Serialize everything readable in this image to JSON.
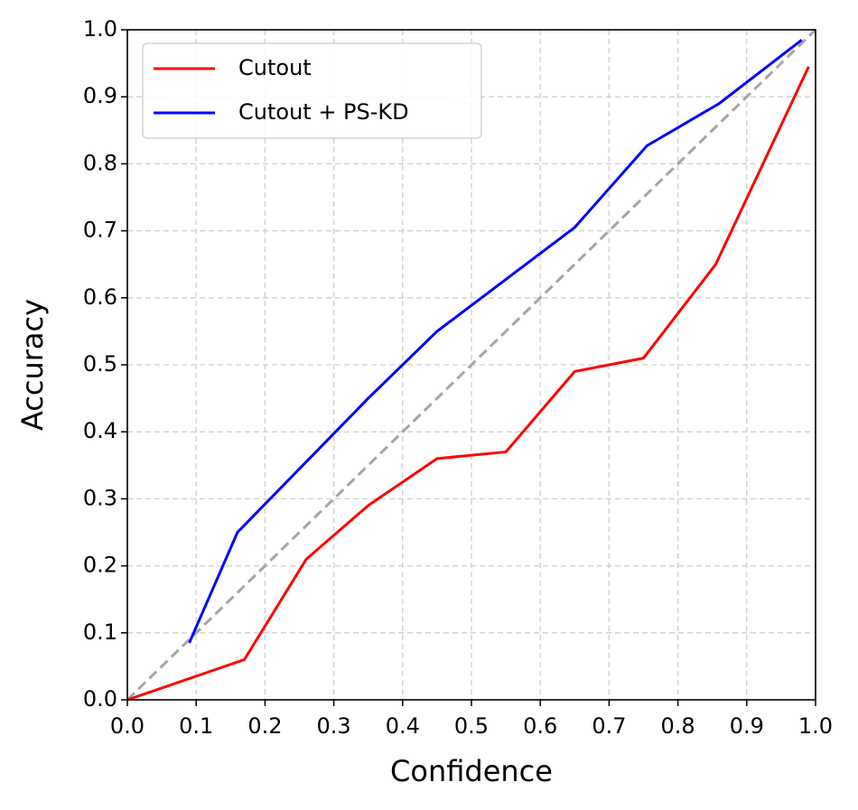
{
  "chart_data": {
    "type": "line",
    "xlabel": "Confidence",
    "ylabel": "Accuracy",
    "xlim": [
      0,
      1
    ],
    "ylim": [
      0,
      1
    ],
    "xticks": [
      {
        "value": 0,
        "label": "0.0"
      },
      0.1,
      0.2,
      0.3,
      0.4,
      0.5,
      0.6,
      0.7,
      0.8,
      0.9,
      {
        "value": 1,
        "label": "1.0"
      }
    ],
    "yticks": [
      {
        "value": 0,
        "label": "0.0"
      },
      0.1,
      0.2,
      0.3,
      0.4,
      0.5,
      0.6,
      0.7,
      0.8,
      0.9,
      {
        "value": 1,
        "label": "1.0"
      }
    ],
    "grid": true,
    "legend": "upper left",
    "diagonal": {
      "x": [
        0,
        1
      ],
      "values": [
        0,
        1
      ],
      "color": "#a6a6a6"
    },
    "series": [
      {
        "name": "Cutout",
        "color": "#ff0000",
        "x": [
          0,
          0.17,
          0.26,
          0.35,
          0.45,
          0.55,
          0.65,
          0.75,
          0.855,
          0.99
        ],
        "values": [
          0,
          0.06,
          0.21,
          0.29,
          0.36,
          0.37,
          0.49,
          0.51,
          0.65,
          0.945
        ]
      },
      {
        "name": "Cutout + PS-KD",
        "color": "#0000ff",
        "x": [
          0.09,
          0.16,
          0.35,
          0.45,
          0.65,
          0.755,
          0.86,
          0.98
        ],
        "values": [
          0.085,
          0.25,
          0.45,
          0.55,
          0.705,
          0.827,
          0.89,
          0.985
        ]
      }
    ]
  }
}
